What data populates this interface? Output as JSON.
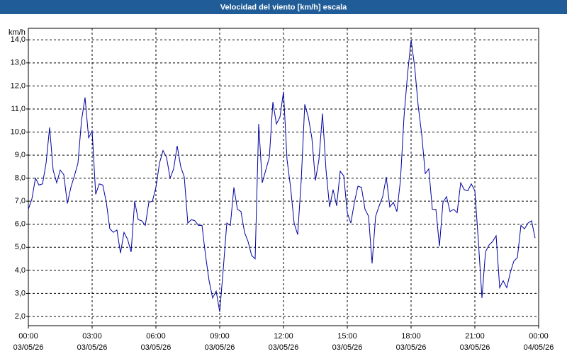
{
  "chart_data": {
    "type": "line",
    "title": "Velocidad del viento [km/h] escala",
    "y_label": "km/h",
    "x": [
      "03/05/26 00:00",
      "03/05/26 00:10",
      "03/05/26 00:20",
      "03/05/26 00:30",
      "03/05/26 00:40",
      "03/05/26 00:50",
      "03/05/26 01:00",
      "03/05/26 01:10",
      "03/05/26 01:20",
      "03/05/26 01:30",
      "03/05/26 01:40",
      "03/05/26 01:50",
      "03/05/26 02:00",
      "03/05/26 02:10",
      "03/05/26 02:20",
      "03/05/26 02:30",
      "03/05/26 02:40",
      "03/05/26 02:50",
      "03/05/26 03:00",
      "03/05/26 03:10",
      "03/05/26 03:20",
      "03/05/26 03:30",
      "03/05/26 03:40",
      "03/05/26 03:50",
      "03/05/26 04:00",
      "03/05/26 04:10",
      "03/05/26 04:20",
      "03/05/26 04:30",
      "03/05/26 04:40",
      "03/05/26 04:50",
      "03/05/26 05:00",
      "03/05/26 05:10",
      "03/05/26 05:20",
      "03/05/26 05:30",
      "03/05/26 05:40",
      "03/05/26 05:50",
      "03/05/26 06:00",
      "03/05/26 06:10",
      "03/05/26 06:20",
      "03/05/26 06:30",
      "03/05/26 06:40",
      "03/05/26 06:50",
      "03/05/26 07:00",
      "03/05/26 07:10",
      "03/05/26 07:20",
      "03/05/26 07:30",
      "03/05/26 07:40",
      "03/05/26 07:50",
      "03/05/26 08:00",
      "03/05/26 08:10",
      "03/05/26 08:20",
      "03/05/26 08:30",
      "03/05/26 08:40",
      "03/05/26 08:50",
      "03/05/26 09:00",
      "03/05/26 09:10",
      "03/05/26 09:20",
      "03/05/26 09:30",
      "03/05/26 09:40",
      "03/05/26 09:50",
      "03/05/26 10:00",
      "03/05/26 10:10",
      "03/05/26 10:20",
      "03/05/26 10:30",
      "03/05/26 10:40",
      "03/05/26 10:50",
      "03/05/26 11:00",
      "03/05/26 11:10",
      "03/05/26 11:20",
      "03/05/26 11:30",
      "03/05/26 11:40",
      "03/05/26 11:50",
      "03/05/26 12:00",
      "03/05/26 12:10",
      "03/05/26 12:20",
      "03/05/26 12:30",
      "03/05/26 12:40",
      "03/05/26 12:50",
      "03/05/26 13:00",
      "03/05/26 13:10",
      "03/05/26 13:20",
      "03/05/26 13:30",
      "03/05/26 13:40",
      "03/05/26 13:50",
      "03/05/26 14:00",
      "03/05/26 14:10",
      "03/05/26 14:20",
      "03/05/26 14:30",
      "03/05/26 14:40",
      "03/05/26 14:50",
      "03/05/26 15:00",
      "03/05/26 15:10",
      "03/05/26 15:20",
      "03/05/26 15:30",
      "03/05/26 15:40",
      "03/05/26 15:50",
      "03/05/26 16:00",
      "03/05/26 16:10",
      "03/05/26 16:20",
      "03/05/26 16:30",
      "03/05/26 16:40",
      "03/05/26 16:50",
      "03/05/26 17:00",
      "03/05/26 17:10",
      "03/05/26 17:20",
      "03/05/26 17:30",
      "03/05/26 17:40",
      "03/05/26 17:50",
      "03/05/26 18:00",
      "03/05/26 18:10",
      "03/05/26 18:20",
      "03/05/26 18:30",
      "03/05/26 18:40",
      "03/05/26 18:50",
      "03/05/26 19:00",
      "03/05/26 19:10",
      "03/05/26 19:20",
      "03/05/26 19:30",
      "03/05/26 19:40",
      "03/05/26 19:50",
      "03/05/26 20:00",
      "03/05/26 20:10",
      "03/05/26 20:20",
      "03/05/26 20:30",
      "03/05/26 20:40",
      "03/05/26 20:50",
      "03/05/26 21:00",
      "03/05/26 21:10",
      "03/05/26 21:20",
      "03/05/26 21:30",
      "03/05/26 21:40",
      "03/05/26 21:50",
      "03/05/26 22:00",
      "03/05/26 22:10",
      "03/05/26 22:20",
      "03/05/26 22:30",
      "03/05/26 22:40",
      "03/05/26 22:50",
      "03/05/26 23:00",
      "03/05/26 23:10",
      "03/05/26 23:20",
      "03/05/26 23:30",
      "03/05/26 23:40",
      "03/05/26 23:50"
    ],
    "series": [
      {
        "color": "#0000a0",
        "values": [
          6.65,
          7.1,
          8.0,
          7.7,
          7.75,
          8.65,
          10.2,
          8.35,
          7.8,
          8.35,
          8.15,
          6.9,
          7.6,
          8.1,
          8.65,
          10.5,
          11.5,
          9.75,
          10.05,
          7.3,
          7.75,
          7.7,
          6.95,
          5.8,
          5.65,
          5.75,
          4.75,
          5.65,
          5.35,
          4.8,
          7.0,
          6.2,
          6.15,
          5.95,
          6.95,
          7.0,
          7.6,
          8.65,
          9.2,
          8.9,
          8.0,
          8.4,
          9.4,
          8.5,
          8.05,
          6.05,
          6.2,
          6.15,
          5.95,
          5.95,
          4.65,
          3.55,
          2.8,
          3.1,
          2.2,
          4.05,
          6.05,
          5.95,
          7.6,
          6.65,
          6.55,
          5.65,
          5.25,
          4.65,
          4.5,
          10.35,
          7.8,
          8.35,
          8.9,
          11.3,
          10.35,
          10.65,
          11.75,
          8.8,
          7.6,
          6.05,
          5.55,
          7.9,
          11.2,
          10.65,
          9.75,
          7.9,
          8.8,
          10.8,
          8.35,
          6.75,
          7.5,
          6.8,
          8.3,
          8.1,
          6.5,
          6.05,
          6.95,
          7.65,
          7.6,
          6.65,
          6.35,
          4.3,
          6.35,
          6.8,
          7.2,
          8.05,
          6.75,
          6.95,
          6.55,
          7.9,
          10.65,
          12.5,
          14.0,
          12.85,
          11.15,
          9.9,
          8.2,
          8.4,
          6.65,
          6.65,
          5.05,
          6.95,
          7.2,
          6.55,
          6.65,
          6.5,
          7.8,
          7.5,
          7.45,
          7.75,
          7.45,
          5.25,
          2.8,
          4.8,
          5.1,
          5.25,
          5.5,
          3.25,
          3.55,
          3.25,
          3.9,
          4.4,
          4.55,
          5.95,
          5.8,
          6.05,
          6.15,
          5.4
        ]
      }
    ],
    "xlim": [
      "03/05/26 00:00",
      "04/05/26 00:00"
    ],
    "xticks": [
      {
        "value": "03/05/26 00:00",
        "label": "00:00"
      },
      {
        "value": "03/05/26 03:00",
        "label": "03:00"
      },
      {
        "value": "03/05/26 06:00",
        "label": "06:00"
      },
      {
        "value": "03/05/26 09:00",
        "label": "09:00"
      },
      {
        "value": "03/05/26 12:00",
        "label": "12:00"
      },
      {
        "value": "03/05/26 15:00",
        "label": "15:00"
      },
      {
        "value": "03/05/26 18:00",
        "label": "18:00"
      },
      {
        "value": "03/05/26 21:00",
        "label": "21:00"
      },
      {
        "value": "04/05/26 00:00",
        "label": "00:00"
      }
    ],
    "xtick_dates": [
      "03/05/26",
      "03/05/26",
      "03/05/26",
      "03/05/26",
      "03/05/26",
      "03/05/26",
      "03/05/26",
      "03/05/26",
      "04/05/26"
    ],
    "ylim": [
      1.6,
      14.5
    ],
    "yticks": [
      {
        "value": 2,
        "label": "2,0"
      },
      {
        "value": 3,
        "label": "3,0"
      },
      {
        "value": 4,
        "label": "4,0"
      },
      {
        "value": 5,
        "label": "5,0"
      },
      {
        "value": 6,
        "label": "6,0"
      },
      {
        "value": 7,
        "label": "7,0"
      },
      {
        "value": 8,
        "label": "8,0"
      },
      {
        "value": 9,
        "label": "9,0"
      },
      {
        "value": 10,
        "label": "10,0"
      },
      {
        "value": 11,
        "label": "11,0"
      },
      {
        "value": 12,
        "label": "12,0"
      },
      {
        "value": 13,
        "label": "13,0"
      },
      {
        "value": 14,
        "label": "14,0"
      }
    ],
    "grid": true
  }
}
